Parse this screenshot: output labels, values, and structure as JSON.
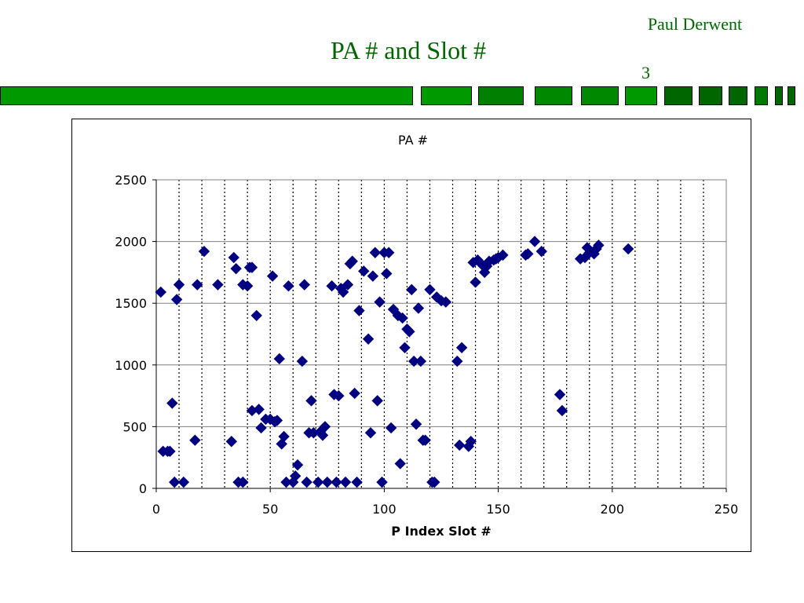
{
  "slide": {
    "author": "Paul Derwent",
    "title": "PA # and Slot #",
    "page_number": "3"
  },
  "colors": {
    "title_text": "#006400",
    "stripe_light": "#009900",
    "stripe_dark": "#006600",
    "marker": "#000080"
  },
  "chart_data": {
    "type": "scatter",
    "title": "PA #",
    "xlabel": "P Index Slot #",
    "ylabel": "",
    "xlim": [
      0,
      250
    ],
    "ylim": [
      0,
      2500
    ],
    "xticks": [
      "0",
      "50",
      "100",
      "150",
      "200",
      "250"
    ],
    "yticks": [
      "0",
      "500",
      "1000",
      "1500",
      "2000",
      "2500"
    ],
    "grid": "vertical dotted every 10, horizontal solid every 500",
    "legend": "none",
    "marker": "diamond",
    "series": [
      {
        "points": [
          [
            2,
            1590
          ],
          [
            3,
            300
          ],
          [
            5,
            300
          ],
          [
            6,
            300
          ],
          [
            7,
            690
          ],
          [
            8,
            50
          ],
          [
            9,
            1530
          ],
          [
            10,
            1650
          ],
          [
            12,
            50
          ],
          [
            17,
            390
          ],
          [
            18,
            1650
          ],
          [
            21,
            1920
          ],
          [
            27,
            1650
          ],
          [
            33,
            380
          ],
          [
            34,
            1870
          ],
          [
            35,
            1780
          ],
          [
            36,
            50
          ],
          [
            38,
            50
          ],
          [
            38,
            1650
          ],
          [
            40,
            1640
          ],
          [
            41,
            1790
          ],
          [
            42,
            1790
          ],
          [
            42,
            630
          ],
          [
            44,
            1400
          ],
          [
            45,
            640
          ],
          [
            46,
            490
          ],
          [
            48,
            560
          ],
          [
            50,
            560
          ],
          [
            51,
            1720
          ],
          [
            52,
            540
          ],
          [
            53,
            550
          ],
          [
            54,
            1050
          ],
          [
            55,
            360
          ],
          [
            56,
            420
          ],
          [
            57,
            50
          ],
          [
            58,
            1640
          ],
          [
            60,
            50
          ],
          [
            61,
            100
          ],
          [
            62,
            190
          ],
          [
            64,
            1030
          ],
          [
            65,
            1650
          ],
          [
            66,
            50
          ],
          [
            67,
            450
          ],
          [
            68,
            710
          ],
          [
            69,
            450
          ],
          [
            71,
            50
          ],
          [
            72,
            460
          ],
          [
            73,
            430
          ],
          [
            74,
            500
          ],
          [
            75,
            50
          ],
          [
            77,
            1640
          ],
          [
            78,
            760
          ],
          [
            79,
            50
          ],
          [
            80,
            750
          ],
          [
            81,
            1620
          ],
          [
            82,
            1590
          ],
          [
            83,
            50
          ],
          [
            84,
            1650
          ],
          [
            85,
            1820
          ],
          [
            86,
            1840
          ],
          [
            87,
            770
          ],
          [
            88,
            50
          ],
          [
            89,
            1440
          ],
          [
            91,
            1760
          ],
          [
            93,
            1210
          ],
          [
            94,
            450
          ],
          [
            95,
            1720
          ],
          [
            96,
            1910
          ],
          [
            97,
            710
          ],
          [
            98,
            1510
          ],
          [
            99,
            50
          ],
          [
            100,
            1910
          ],
          [
            101,
            1740
          ],
          [
            102,
            1910
          ],
          [
            103,
            490
          ],
          [
            104,
            1450
          ],
          [
            106,
            1400
          ],
          [
            107,
            200
          ],
          [
            108,
            1380
          ],
          [
            109,
            1140
          ],
          [
            110,
            1290
          ],
          [
            111,
            1270
          ],
          [
            112,
            1610
          ],
          [
            113,
            1030
          ],
          [
            114,
            520
          ],
          [
            115,
            1460
          ],
          [
            116,
            1030
          ],
          [
            117,
            390
          ],
          [
            118,
            390
          ],
          [
            120,
            1610
          ],
          [
            121,
            50
          ],
          [
            122,
            50
          ],
          [
            123,
            1550
          ],
          [
            125,
            1520
          ],
          [
            127,
            1510
          ],
          [
            132,
            1030
          ],
          [
            133,
            350
          ],
          [
            134,
            1140
          ],
          [
            137,
            340
          ],
          [
            138,
            380
          ],
          [
            139,
            1830
          ],
          [
            140,
            1670
          ],
          [
            141,
            1850
          ],
          [
            143,
            1810
          ],
          [
            144,
            1750
          ],
          [
            145,
            1800
          ],
          [
            146,
            1840
          ],
          [
            148,
            1850
          ],
          [
            149,
            1860
          ],
          [
            150,
            1870
          ],
          [
            152,
            1890
          ],
          [
            162,
            1890
          ],
          [
            163,
            1900
          ],
          [
            166,
            2000
          ],
          [
            169,
            1920
          ],
          [
            177,
            760
          ],
          [
            178,
            630
          ],
          [
            186,
            1860
          ],
          [
            188,
            1870
          ],
          [
            189,
            1950
          ],
          [
            190,
            1910
          ],
          [
            192,
            1900
          ],
          [
            193,
            1940
          ],
          [
            194,
            1970
          ],
          [
            207,
            1940
          ]
        ]
      }
    ]
  }
}
